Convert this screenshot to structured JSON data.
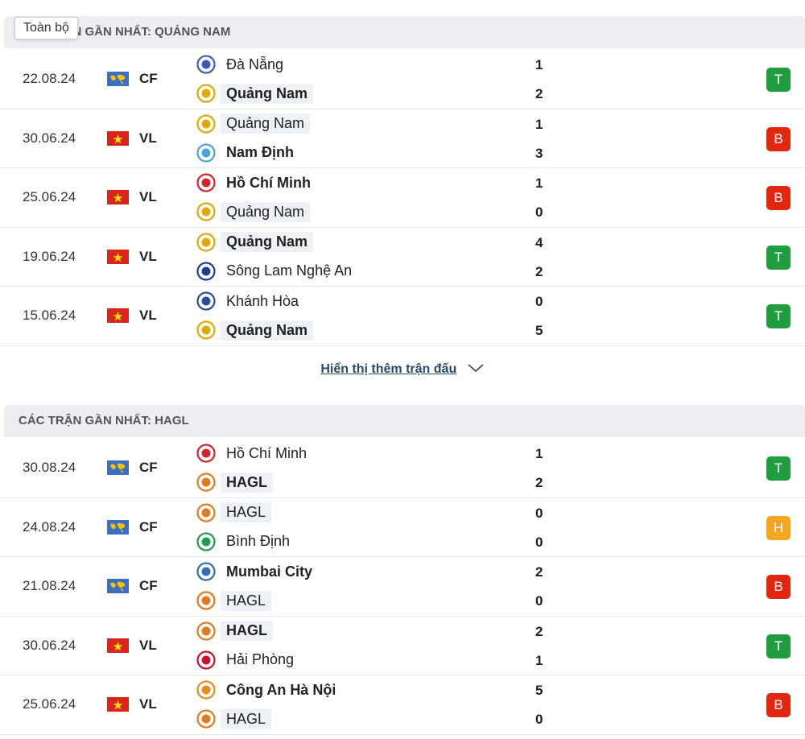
{
  "tooltip": "Toàn bộ",
  "show_more": "Hiển thị thêm trận đấu",
  "sections": [
    {
      "title": "CÁC TRẬN GẦN NHẤT: QUẢNG NAM",
      "matches": [
        {
          "date": "22.08.24",
          "league": "CF",
          "home": {
            "name": "Đà Nẵng",
            "logo_color": "#3a5bb5"
          },
          "away": {
            "name": "Quảng Nam",
            "logo_color": "#e0a800"
          },
          "home_score": 1,
          "away_score": 2,
          "result": "T",
          "winner": "away",
          "highlight": "away"
        },
        {
          "date": "30.06.24",
          "league": "VL",
          "home": {
            "name": "Quảng Nam",
            "logo_color": "#e0a800"
          },
          "away": {
            "name": "Nam Định",
            "logo_color": "#4aa3df"
          },
          "home_score": 1,
          "away_score": 3,
          "result": "B",
          "winner": "away",
          "highlight": "home"
        },
        {
          "date": "25.06.24",
          "league": "VL",
          "home": {
            "name": "Hồ Chí Minh",
            "logo_color": "#d2232a"
          },
          "away": {
            "name": "Quảng Nam",
            "logo_color": "#e0a800"
          },
          "home_score": 1,
          "away_score": 0,
          "result": "B",
          "winner": "home",
          "highlight": "away"
        },
        {
          "date": "19.06.24",
          "league": "VL",
          "home": {
            "name": "Quảng Nam",
            "logo_color": "#e0a800"
          },
          "away": {
            "name": "Sông Lam Nghệ An",
            "logo_color": "#1c3f94"
          },
          "home_score": 4,
          "away_score": 2,
          "result": "T",
          "winner": "home",
          "highlight": "home"
        },
        {
          "date": "15.06.24",
          "league": "VL",
          "home": {
            "name": "Khánh Hòa",
            "logo_color": "#2b4c9b"
          },
          "away": {
            "name": "Quảng Nam",
            "logo_color": "#e0a800"
          },
          "home_score": 0,
          "away_score": 5,
          "result": "T",
          "winner": "away",
          "highlight": "away"
        }
      ]
    },
    {
      "title": "CÁC TRẬN GẦN NHẤT: HAGL",
      "matches": [
        {
          "date": "30.08.24",
          "league": "CF",
          "home": {
            "name": "Hồ Chí Minh",
            "logo_color": "#d2232a"
          },
          "away": {
            "name": "HAGL",
            "logo_color": "#e07a1f"
          },
          "home_score": 1,
          "away_score": 2,
          "result": "T",
          "winner": "away",
          "highlight": "away"
        },
        {
          "date": "24.08.24",
          "league": "CF",
          "home": {
            "name": "HAGL",
            "logo_color": "#e07a1f"
          },
          "away": {
            "name": "Bình Định",
            "logo_color": "#1e9b4b"
          },
          "home_score": 0,
          "away_score": 0,
          "result": "H",
          "winner": null,
          "highlight": "home"
        },
        {
          "date": "21.08.24",
          "league": "CF",
          "home": {
            "name": "Mumbai City",
            "logo_color": "#2f6db5"
          },
          "away": {
            "name": "HAGL",
            "logo_color": "#e07a1f"
          },
          "home_score": 2,
          "away_score": 0,
          "result": "B",
          "winner": "home",
          "highlight": "away"
        },
        {
          "date": "30.06.24",
          "league": "VL",
          "home": {
            "name": "HAGL",
            "logo_color": "#e07a1f"
          },
          "away": {
            "name": "Hải Phòng",
            "logo_color": "#c8102e"
          },
          "home_score": 2,
          "away_score": 1,
          "result": "T",
          "winner": "home",
          "highlight": "home"
        },
        {
          "date": "25.06.24",
          "league": "VL",
          "home": {
            "name": "Công An Hà Nội",
            "logo_color": "#e98b1c"
          },
          "away": {
            "name": "HAGL",
            "logo_color": "#e07a1f"
          },
          "home_score": 5,
          "away_score": 0,
          "result": "B",
          "winner": "home",
          "highlight": "away"
        }
      ]
    }
  ]
}
